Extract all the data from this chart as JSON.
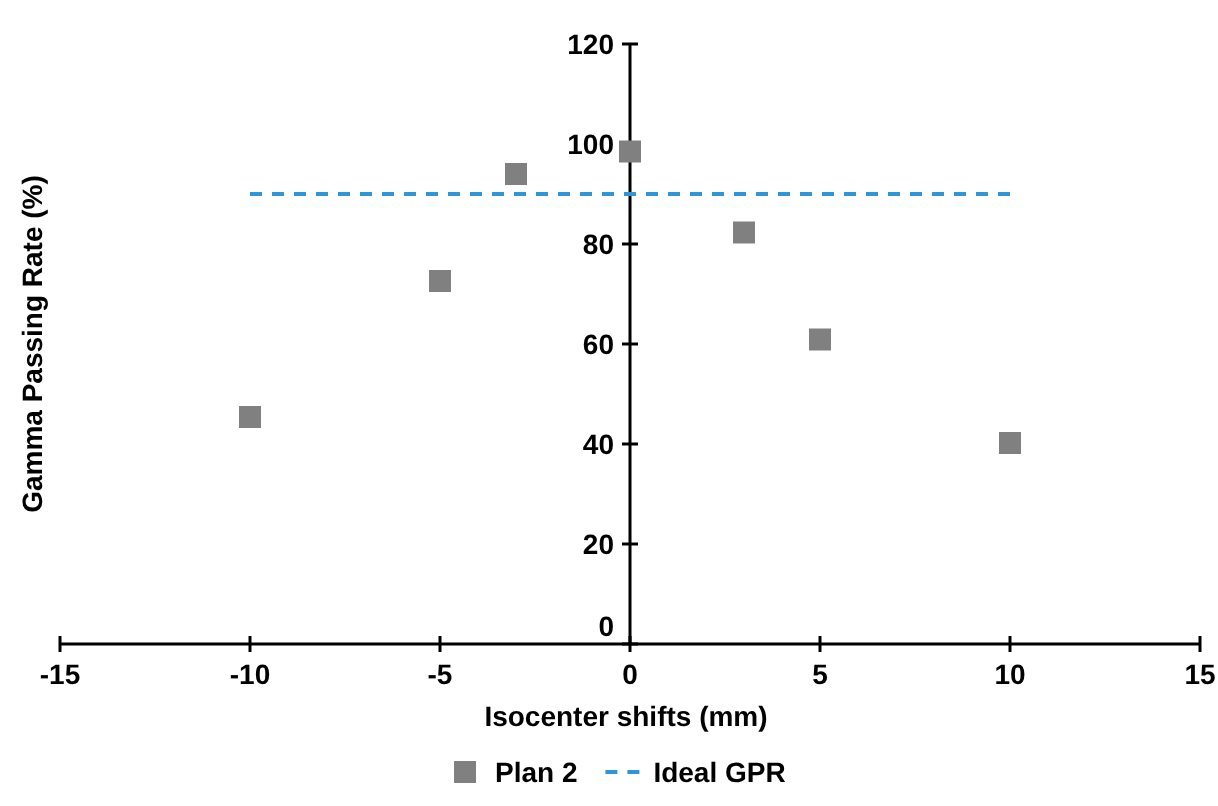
{
  "chart_data": {
    "type": "scatter",
    "xlabel": "Isocenter shifts (mm)",
    "ylabel": "Gamma Passing Rate (%)",
    "xlim": [
      -15,
      15
    ],
    "xticks": [
      -15,
      -10,
      -5,
      0,
      5,
      10,
      15
    ],
    "ylim": [
      0,
      120
    ],
    "yticks": [
      0,
      20,
      40,
      60,
      80,
      100,
      120
    ],
    "grid": false,
    "legend": "bottom",
    "marker": "square",
    "series": [
      {
        "name": "Plan 2",
        "color": "#808080",
        "x": [
          -10,
          -5,
          -3,
          0,
          3,
          5,
          10
        ],
        "values": [
          45.4,
          72.6,
          94,
          98.5,
          82.3,
          60.9,
          40.2
        ]
      },
      {
        "name": "Ideal GPR",
        "type": "line",
        "color": "#2e95d8",
        "line_style": "dashed",
        "marker": "none",
        "x": [
          -10,
          10
        ],
        "values": [
          90,
          90
        ]
      }
    ]
  }
}
